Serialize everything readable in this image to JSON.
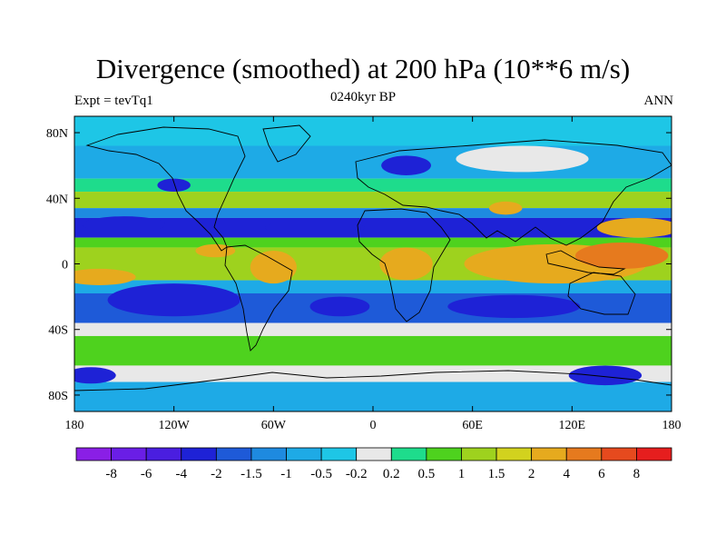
{
  "chart_data": {
    "type": "heatmap",
    "title": "Divergence (smoothed) at 200 hPa (10**6 m/s)",
    "subtitle_left": "Expt = tevTq1",
    "subtitle_center": "0240kyr BP",
    "subtitle_right": "ANN",
    "x_ticks": [
      {
        "value": -180,
        "label": "180"
      },
      {
        "value": -120,
        "label": "120W"
      },
      {
        "value": -60,
        "label": "60W"
      },
      {
        "value": 0,
        "label": "0"
      },
      {
        "value": 60,
        "label": "60E"
      },
      {
        "value": 120,
        "label": "120E"
      },
      {
        "value": 180,
        "label": "180"
      }
    ],
    "y_ticks": [
      {
        "value": 80,
        "label": "80N"
      },
      {
        "value": 40,
        "label": "40N"
      },
      {
        "value": 0,
        "label": "0"
      },
      {
        "value": -40,
        "label": "40S"
      },
      {
        "value": -80,
        "label": "80S"
      }
    ],
    "xlim": [
      -180,
      180
    ],
    "ylim": [
      -90,
      90
    ],
    "colorbar": {
      "colors": [
        "#8a1fe6",
        "#6a1ee6",
        "#4a1ee0",
        "#1e22d6",
        "#1e5ad8",
        "#1e8ae0",
        "#1eaae6",
        "#1ec6e6",
        "#e8e8e8",
        "#1edc8c",
        "#4ed21e",
        "#9ed21e",
        "#d2d21e",
        "#e6aa1e",
        "#e67a1e",
        "#e64a1e",
        "#e61e1e"
      ],
      "labels": [
        "-8",
        "-6",
        "-4",
        "-2",
        "-1.5",
        "-1",
        "-0.5",
        "-0.2",
        "0.2",
        "0.5",
        "1",
        "1.5",
        "2",
        "4",
        "6",
        "8"
      ]
    },
    "field_bands": [
      {
        "lat_from": 90,
        "lat_to": 72,
        "value": -0.3
      },
      {
        "lat_from": 72,
        "lat_to": 52,
        "value": -1.0
      },
      {
        "lat_from": 52,
        "lat_to": 44,
        "value": 0.3
      },
      {
        "lat_from": 44,
        "lat_to": 34,
        "value": 1.0
      },
      {
        "lat_from": 34,
        "lat_to": 28,
        "value": -1.5
      },
      {
        "lat_from": 28,
        "lat_to": 16,
        "value": -2.5
      },
      {
        "lat_from": 16,
        "lat_to": 10,
        "value": 0.6
      },
      {
        "lat_from": 10,
        "lat_to": -10,
        "value": 1.2
      },
      {
        "lat_from": -10,
        "lat_to": -18,
        "value": -0.6
      },
      {
        "lat_from": -18,
        "lat_to": -36,
        "value": -1.8
      },
      {
        "lat_from": -36,
        "lat_to": -44,
        "value": 0.1
      },
      {
        "lat_from": -44,
        "lat_to": -62,
        "value": 0.7
      },
      {
        "lat_from": -62,
        "lat_to": -72,
        "value": -0.1
      },
      {
        "lat_from": -72,
        "lat_to": -90,
        "value": -0.7
      }
    ],
    "field_blobs": [
      {
        "lon": 110,
        "lat": 0,
        "rx": 55,
        "ry": 12,
        "value": 3.0
      },
      {
        "lon": 150,
        "lat": 5,
        "rx": 28,
        "ry": 8,
        "value": 4.5
      },
      {
        "lon": 160,
        "lat": 22,
        "rx": 25,
        "ry": 6,
        "value": 3.0
      },
      {
        "lon": 20,
        "lat": 0,
        "rx": 16,
        "ry": 10,
        "value": 3.0
      },
      {
        "lon": -60,
        "lat": -2,
        "rx": 14,
        "ry": 10,
        "value": 3.0
      },
      {
        "lon": -95,
        "lat": 8,
        "rx": 12,
        "ry": 4,
        "value": 2.5
      },
      {
        "lon": -165,
        "lat": -8,
        "rx": 22,
        "ry": 5,
        "value": 2.5
      },
      {
        "lon": -120,
        "lat": -22,
        "rx": 40,
        "ry": 10,
        "value": -3.0
      },
      {
        "lon": -20,
        "lat": -26,
        "rx": 18,
        "ry": 6,
        "value": -2.5
      },
      {
        "lon": 85,
        "lat": -26,
        "rx": 40,
        "ry": 7,
        "value": -2.5
      },
      {
        "lon": -150,
        "lat": 24,
        "rx": 25,
        "ry": 5,
        "value": -3.0
      },
      {
        "lon": -35,
        "lat": 22,
        "rx": 30,
        "ry": 5,
        "value": -3.0
      },
      {
        "lon": 20,
        "lat": 60,
        "rx": 15,
        "ry": 6,
        "value": -2.5
      },
      {
        "lon": 80,
        "lat": 34,
        "rx": 10,
        "ry": 4,
        "value": 2.5
      },
      {
        "lon": -120,
        "lat": 48,
        "rx": 10,
        "ry": 4,
        "value": -2.5
      },
      {
        "lon": 90,
        "lat": 64,
        "rx": 40,
        "ry": 8,
        "value": 0.0
      },
      {
        "lon": -170,
        "lat": -68,
        "rx": 15,
        "ry": 5,
        "value": -3.0
      },
      {
        "lon": 140,
        "lat": -68,
        "rx": 22,
        "ry": 6,
        "value": -2.5
      }
    ]
  }
}
